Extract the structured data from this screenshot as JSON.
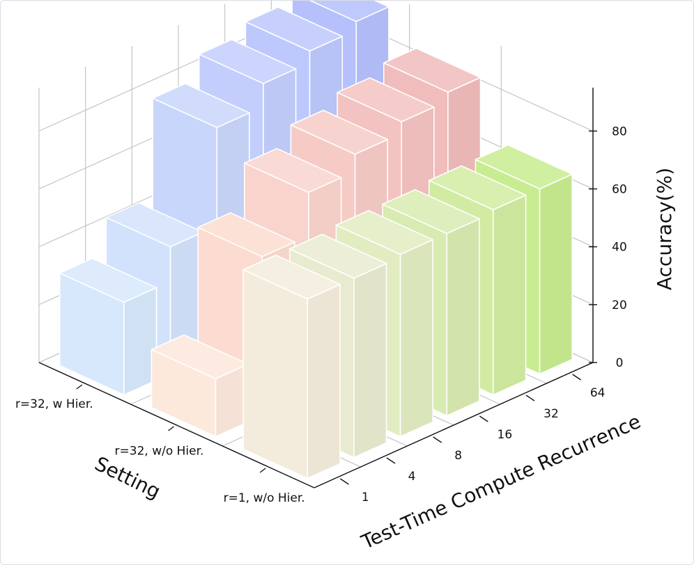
{
  "chart_data": {
    "type": "bar3d",
    "x_label": "Test-Time Compute Recurrence",
    "y_label": "Setting",
    "z_label": "Accuracy(%)",
    "categories": [
      "1",
      "4",
      "8",
      "16",
      "32",
      "64"
    ],
    "series": [
      {
        "name": "r=1, w/o Hier.",
        "colors": [
          "#f3ecdc",
          "#e9ebd0",
          "#e1ecc1",
          "#d8ebb1",
          "#d1eca2",
          "#c8ec90"
        ],
        "values": [
          62,
          62,
          63,
          63,
          64,
          64
        ]
      },
      {
        "name": "r=32, w/o Hier.",
        "colors": [
          "#fde8dc",
          "#fcdcd0",
          "#f9d4cc",
          "#f6cbc6",
          "#f3c3c1",
          "#f0bcbc"
        ],
        "values": [
          20,
          55,
          70,
          76,
          80,
          83
        ]
      },
      {
        "name": "r=32, w Hier.",
        "colors": [
          "#d7e8fc",
          "#d2e2fc",
          "#c9d6fc",
          "#c3cefd",
          "#bdc8fd",
          "#b5c0fd"
        ],
        "values": [
          32,
          44,
          78,
          86,
          90,
          93
        ]
      }
    ],
    "zlim": [
      0,
      95
    ],
    "zticks": [
      0,
      20,
      40,
      60,
      80
    ],
    "grid": true
  }
}
